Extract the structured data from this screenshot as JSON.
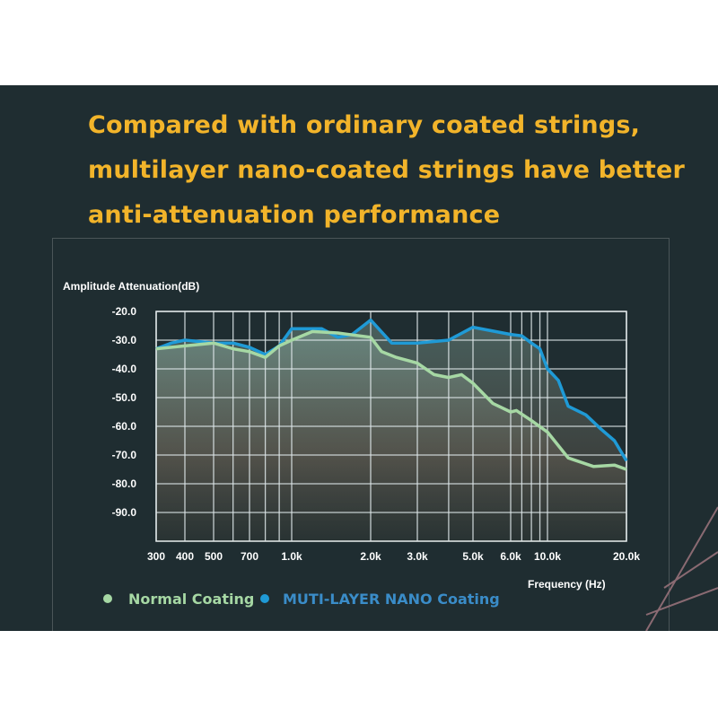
{
  "title_lines": [
    "Compared with ordinary coated strings,",
    "multilayer nano-coated strings have better",
    "anti-attenuation performance"
  ],
  "chart_data": {
    "type": "line",
    "ylabel": "Amplitude Attenuation(dB)",
    "xlabel": "Frequency (Hz)",
    "xscale": "log (non-uniform)",
    "ylim": [
      -20,
      -100
    ],
    "yticks": [
      -20,
      -30,
      -40,
      -50,
      -60,
      -70,
      -80,
      -90
    ],
    "ytick_labels": [
      "-20.0",
      "-30.0",
      "-40.0",
      "-50.0",
      "-60.0",
      "-70.0",
      "-80.0",
      "-90.0"
    ],
    "xticks": [
      300,
      400,
      500,
      700,
      1000,
      2000,
      3000,
      5000,
      6000,
      10000,
      20000
    ],
    "xtick_labels": [
      "300",
      "400",
      "500",
      "700",
      "1.0k",
      "2.0k",
      "3.0k",
      "5.0k",
      "6.0k",
      "10.0k",
      "20.0k"
    ],
    "grid": true,
    "grid_x": [
      300,
      400,
      500,
      600,
      700,
      800,
      900,
      1000,
      2000,
      3000,
      4000,
      5000,
      6000,
      7000,
      8000,
      9000,
      10000,
      20000
    ],
    "legend_position": "bottom-left",
    "series": [
      {
        "name": "Normal Coating",
        "color": "#a6d8a4",
        "x": [
          300,
          400,
          500,
          600,
          700,
          800,
          900,
          1000,
          1200,
          1500,
          2000,
          2200,
          2500,
          3000,
          3500,
          4000,
          4500,
          5000,
          5500,
          6000,
          6500,
          8000,
          10000,
          12000,
          15000,
          18000,
          20000
        ],
        "y": [
          -33,
          -32,
          -31,
          -33,
          -34,
          -36,
          -32,
          -30,
          -27,
          -27.5,
          -29,
          -34,
          -36,
          -38,
          -42,
          -43,
          -42,
          -45,
          -52,
          -55,
          -54.5,
          -58,
          -62,
          -71,
          -74,
          -73.5,
          -75
        ]
      },
      {
        "name": "MUTI-LAYER NANO Coating",
        "color": "#1f9ad6",
        "x": [
          300,
          350,
          400,
          500,
          600,
          700,
          800,
          900,
          1000,
          1300,
          1500,
          1700,
          2000,
          2400,
          3000,
          4000,
          5000,
          6000,
          7000,
          8000,
          9000,
          10000,
          11000,
          12000,
          14000,
          16000,
          18000,
          20000
        ],
        "y": [
          -33,
          -31,
          -30,
          -31,
          -31,
          -32.5,
          -35,
          -32,
          -26,
          -26,
          -29,
          -28,
          -23,
          -31,
          -31,
          -30,
          -25.5,
          -28,
          -28.5,
          -31,
          -33,
          -40,
          -44,
          -53,
          -56,
          -61,
          -65,
          -72
        ]
      }
    ]
  },
  "colors": {
    "background": "#1f2d31",
    "title": "#f2b42a",
    "normal": "#a6d8a4",
    "nano": "#1f9ad6"
  }
}
